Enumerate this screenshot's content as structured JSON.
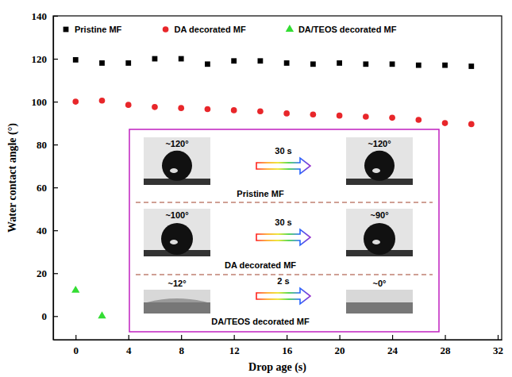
{
  "chart_data": {
    "type": "scatter",
    "x_label": "Drop age (s)",
    "y_label": "Water contact angle (°)",
    "xlim": [
      -1.7,
      32.3
    ],
    "ylim": [
      -11,
      140
    ],
    "xticks": [
      0,
      4,
      8,
      12,
      16,
      20,
      24,
      28,
      32
    ],
    "yticks": [
      0,
      20,
      40,
      60,
      80,
      100,
      120,
      140
    ],
    "legend": "top",
    "series": [
      {
        "name": "Pristine MF",
        "color": "#000000",
        "marker": "square",
        "x": [
          0,
          2,
          4,
          6,
          8,
          10,
          12,
          14,
          16,
          18,
          20,
          22,
          24,
          26,
          28,
          30
        ],
        "values": [
          119.5,
          118,
          118,
          120,
          120,
          117.5,
          119,
          119,
          118,
          117.5,
          118,
          117.5,
          117.5,
          117,
          117,
          116.5
        ]
      },
      {
        "name": "DA decorated MF",
        "color": "#e8262a",
        "marker": "circle",
        "x": [
          0,
          2,
          4,
          6,
          8,
          10,
          12,
          14,
          16,
          18,
          20,
          22,
          24,
          26,
          28,
          30
        ],
        "values": [
          100,
          100.5,
          98.5,
          97.5,
          97,
          96.5,
          96,
          95.5,
          94.5,
          94,
          93.5,
          93,
          92.5,
          91.5,
          90,
          89.5
        ]
      },
      {
        "name": "DA/TEOS decorated MF",
        "color": "#33dd33",
        "marker": "triangle",
        "x": [
          0,
          2
        ],
        "values": [
          12,
          0
        ]
      }
    ],
    "annotations": [
      {
        "text": "Pristine MF",
        "before": "~120°",
        "interval": "30 s",
        "after": "~120°"
      },
      {
        "text": "DA decorated MF",
        "before": "~100°",
        "interval": "30 s",
        "after": "~90°"
      },
      {
        "text": "DA/TEOS decorated MF",
        "before": "~12°",
        "interval": "2 s",
        "after": "~0°"
      }
    ]
  }
}
